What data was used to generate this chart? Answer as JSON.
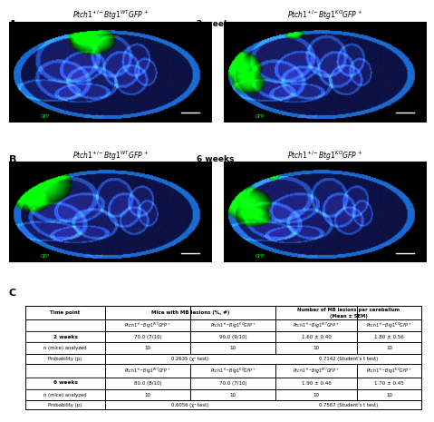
{
  "panel_A_label": "A",
  "panel_B_label": "B",
  "panel_C_label": "C",
  "title_2weeks": "2 weeks",
  "title_6weeks": "6 weeks",
  "bg_color": "#000000",
  "table_header1": "Time point",
  "table_header2": "Mice with MB lesions (%, #)",
  "table_header3": "Number of MB lesions per cerebellum\n(Mean ± SEM)",
  "row_2w_label": "2 weeks",
  "row_2w_col2a": "70.0 (7/10)",
  "row_2w_col2b": "90.0 (9/10)",
  "row_2w_col3a": "1.60 ± 0.40",
  "row_2w_col3b": "1.80 ± 0.56",
  "row_6w_label": "6 weeks",
  "row_6w_col2a": "80.0 (8/10)",
  "row_6w_col2b": "70.0 (7/10)",
  "row_6w_col3a": "1.90 ± 0.46",
  "row_6w_col3b": "1.70 ± 0.45",
  "n_mice_label": "n (mice) analyzed",
  "probability_label": "Probability (p)",
  "row_2w_prob_chi": "0.2635 (χ² test)",
  "row_2w_prob_t": "0.7142 (Student's t test)",
  "row_6w_prob_chi": "0.6056 (χ² test)",
  "row_6w_prob_t": "0.7587 (Student's t test)"
}
